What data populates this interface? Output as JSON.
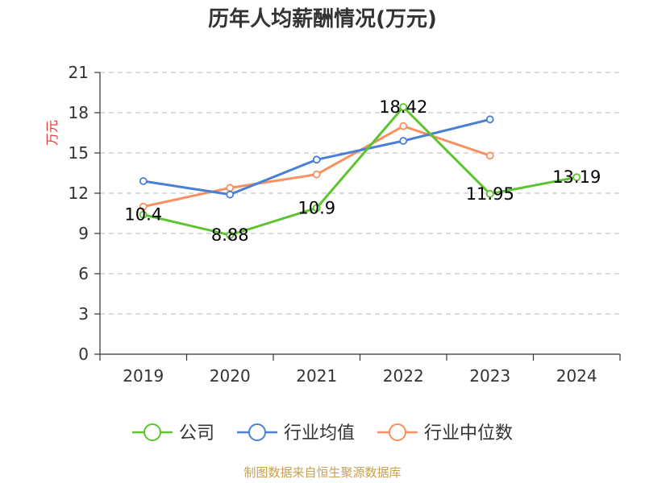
{
  "chart_data": {
    "type": "line",
    "title": "历年人均薪酬情况(万元)",
    "ylabel": "万元",
    "categories": [
      "2019",
      "2020",
      "2021",
      "2022",
      "2023",
      "2024"
    ],
    "ylim": [
      0,
      21
    ],
    "yticks": [
      0,
      3,
      6,
      9,
      12,
      15,
      18,
      21
    ],
    "grid": true,
    "legend_position": "bottom",
    "series": [
      {
        "name": "公司",
        "color": "#5cc42e",
        "values": [
          10.4,
          8.88,
          10.9,
          18.42,
          11.95,
          13.19
        ],
        "labels": [
          "10.4",
          "8.88",
          "10.9",
          "18.42",
          "11.95",
          "13.19"
        ]
      },
      {
        "name": "行业均值",
        "color": "#4a7fd6",
        "values": [
          12.9,
          11.9,
          14.5,
          15.9,
          17.5,
          null
        ]
      },
      {
        "name": "行业中位数",
        "color": "#f89060",
        "values": [
          11.0,
          12.4,
          13.4,
          17.0,
          14.8,
          null
        ]
      }
    ]
  },
  "footer": {
    "source": "制图数据来自恒生聚源数据库"
  }
}
